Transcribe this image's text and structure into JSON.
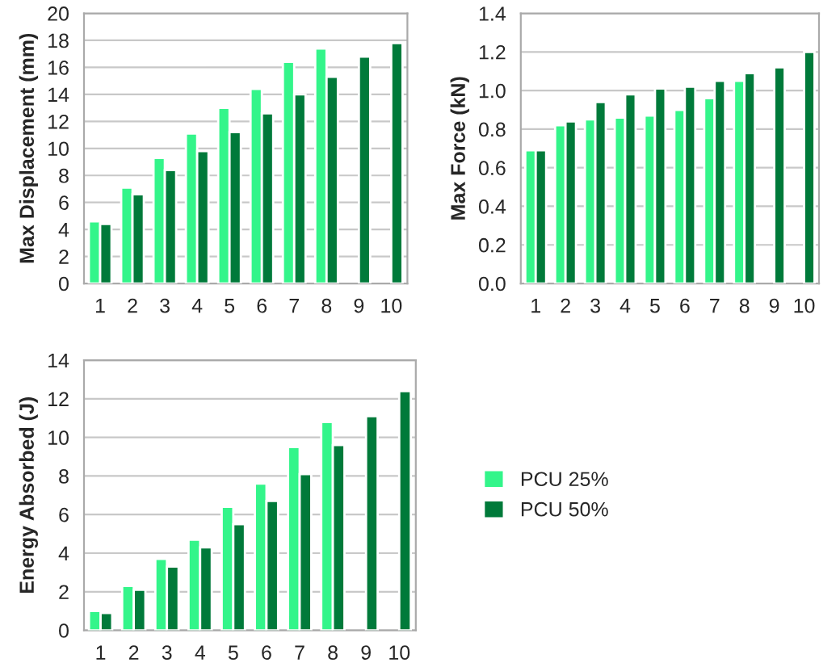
{
  "chart_data": [
    {
      "type": "bar",
      "ylabel": "Max Displacement (mm)",
      "categories": [
        "1",
        "2",
        "3",
        "4",
        "5",
        "6",
        "7",
        "8",
        "9",
        "10"
      ],
      "ylim": [
        0,
        20
      ],
      "yticks": [
        0,
        2,
        4,
        6,
        8,
        10,
        12,
        14,
        16,
        18,
        20
      ],
      "grid": "y",
      "series": [
        {
          "color": "#33f58a",
          "values": [
            4.6,
            7.1,
            9.3,
            11.1,
            13.0,
            14.4,
            16.4,
            17.4,
            null,
            null
          ]
        },
        {
          "color": "#007a3a",
          "values": [
            4.4,
            6.6,
            8.4,
            9.8,
            11.2,
            12.6,
            14.0,
            15.3,
            16.8,
            17.8
          ]
        }
      ]
    },
    {
      "type": "bar",
      "ylabel": "Max Force (kN)",
      "categories": [
        "1",
        "2",
        "3",
        "4",
        "5",
        "6",
        "7",
        "8",
        "9",
        "10"
      ],
      "ylim": [
        0,
        1.4
      ],
      "yticks": [
        {
          "value": 0,
          "label": "0.0"
        },
        {
          "value": 0.2,
          "label": "0.2"
        },
        {
          "value": 0.4,
          "label": "0.4"
        },
        {
          "value": 0.6,
          "label": "0.6"
        },
        {
          "value": 0.8,
          "label": "0.8"
        },
        {
          "value": 1.0,
          "label": "1.0"
        },
        {
          "value": 1.2,
          "label": "1.2"
        },
        {
          "value": 1.4,
          "label": "1.4"
        }
      ],
      "grid": "y",
      "series": [
        {
          "color": "#33f58a",
          "values": [
            0.69,
            0.82,
            0.85,
            0.86,
            0.87,
            0.9,
            0.96,
            1.05,
            null,
            null
          ]
        },
        {
          "color": "#007a3a",
          "values": [
            0.69,
            0.84,
            0.94,
            0.98,
            1.01,
            1.02,
            1.05,
            1.09,
            1.12,
            1.2
          ]
        }
      ]
    },
    {
      "type": "bar",
      "ylabel": "Energy Absorbed (J)",
      "categories": [
        "1",
        "2",
        "3",
        "4",
        "5",
        "6",
        "7",
        "8",
        "9",
        "10"
      ],
      "ylim": [
        0,
        14
      ],
      "yticks": [
        0,
        2,
        4,
        6,
        8,
        10,
        12,
        14
      ],
      "grid": "y",
      "legend": "center right",
      "series": [
        {
          "name": "PCU 25%",
          "color": "#33f58a",
          "values": [
            1.0,
            2.3,
            3.7,
            4.7,
            6.4,
            7.6,
            9.5,
            10.8,
            null,
            null
          ]
        },
        {
          "name": "PCU 50%",
          "color": "#007a3a",
          "values": [
            0.9,
            2.1,
            3.3,
            4.3,
            5.5,
            6.7,
            8.1,
            9.6,
            11.1,
            12.4
          ]
        }
      ]
    }
  ]
}
